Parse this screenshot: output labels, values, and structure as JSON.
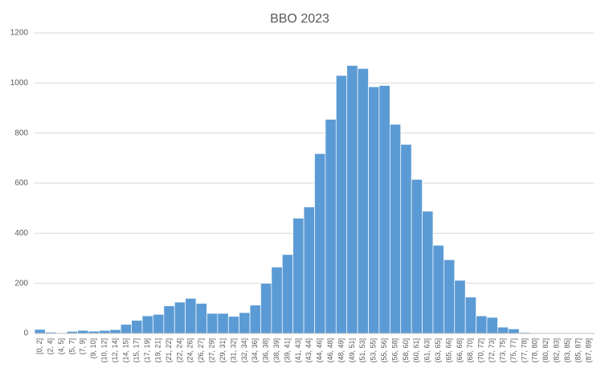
{
  "chart_data": {
    "type": "bar",
    "title": "BBO 2023",
    "categories": [
      "[0, 2]",
      "(2, 4]",
      "(4, 5]",
      "(5, 7]",
      "(7, 9]",
      "(9, 10]",
      "(10, 12]",
      "(12, 14]",
      "(14, 15]",
      "(15, 17]",
      "(17, 19]",
      "(19, 21]",
      "(21, 22]",
      "(22, 24]",
      "(24, 26]",
      "(26, 27]",
      "(27, 29]",
      "(29, 31]",
      "(31, 32]",
      "(32, 34]",
      "(34, 36]",
      "(36, 38]",
      "(38, 39]",
      "(39, 41]",
      "(41, 43]",
      "(43, 44]",
      "(44, 46]",
      "(46, 48]",
      "(48, 49]",
      "(49, 51]",
      "(51, 53]",
      "(53, 55]",
      "(55, 56]",
      "(56, 58]",
      "(58, 60]",
      "(60, 61]",
      "(61, 63]",
      "(63, 65]",
      "(65, 66]",
      "(66, 68]",
      "(68, 70]",
      "(70, 72]",
      "(72, 73]",
      "(73, 75]",
      "(75, 77]",
      "(77, 78]",
      "(78, 80]",
      "(80, 82]",
      "(82, 83]",
      "(83, 85]",
      "(85, 87]",
      "(87, 89]"
    ],
    "values": [
      16,
      5,
      0,
      8,
      12,
      9,
      12,
      15,
      36,
      52,
      70,
      76,
      110,
      125,
      140,
      120,
      80,
      80,
      68,
      83,
      113,
      200,
      265,
      315,
      460,
      505,
      718,
      855,
      1030,
      1070,
      1058,
      985,
      990,
      835,
      755,
      615,
      488,
      352,
      294,
      212,
      145,
      70,
      64,
      25,
      18,
      4,
      0,
      0,
      0,
      0,
      0,
      0
    ],
    "color": "#5b9bd5",
    "ylim": [
      0,
      1200
    ],
    "yticks": [
      0,
      200,
      400,
      600,
      800,
      1000,
      1200
    ],
    "grid": true
  }
}
